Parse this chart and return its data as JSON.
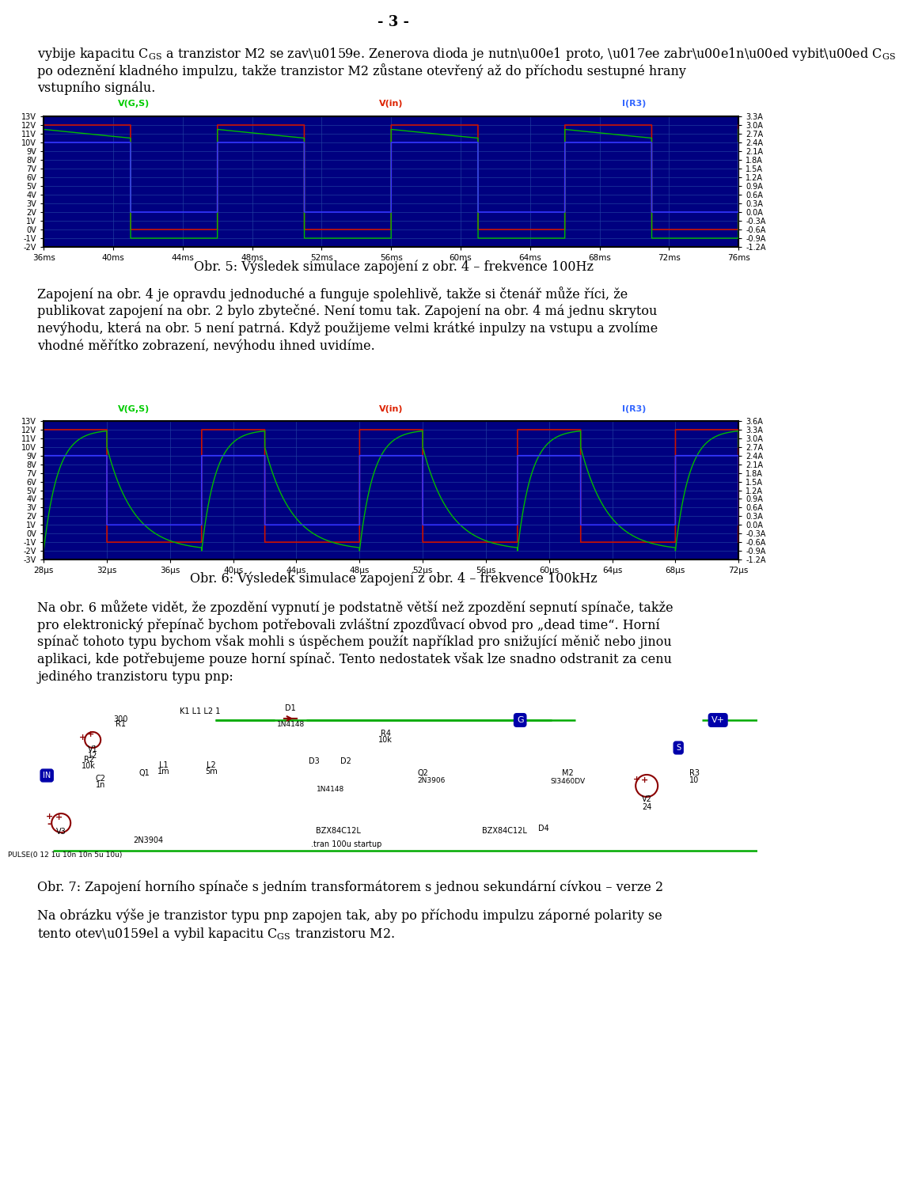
{
  "page_number": "- 3 -",
  "plot1_caption": "Obr. 5: Výsledek simulace zapojení z obr. 4 – frekvence 100Hz",
  "plot2_caption": "Obr. 6: Výsledek simulace zapojení z obr. 4 – frekvence 100kHz",
  "circuit_caption": "Obr. 7: Zapojení horního spínače s jedním transformátorem s jednou sekundární cívkou – verze 2",
  "intro_lines": [
    "vybije kapacitu CGS a tranzistor M2 se zavře. Zenerova dioda je nutná proto, že zabrání vybití CGS",
    "po odeznění kladného impulzu, takže tranzistor M2 zůstane otevřený až do příchodu sestupné hrany",
    "vstupního signálu."
  ],
  "mid_lines": [
    "Zapojení na obr. 4 je opravdu jednoduché a funguje spolehlivě, takže si čtenář může říci, že",
    "publikovat zapojení na obr. 2 bylo zbytečné. Není tomu tak. Zapojení na obr. 4 má jednu skrytou",
    "nevýhodu, která na obr. 5 není patrná. Když použijeme velmi krátké inpulzy na vstupu a zvolíme",
    "vhodné měřítko zobrazení, nevýhodu ihned uvidíme."
  ],
  "bottom_lines": [
    "Na obr. 6 můžete vidět, že zpozdění vypnutí je podstatně větší než zpozdění sepnutí spínače, takže",
    "pro elektronický přepínač bychom potřebovali zvláštní zpozďůvací obvod pro „dead time“. Horní",
    "spínač tohoto typu bychom však mohli s úspěchem použít například pro snižující měnič nebo jinou",
    "aplikaci, kde potřebujeme pouze horní spínač. Tento nedostatek však lze snadno odstranit za cenu",
    "jediného tranzistoru typu pnp:"
  ],
  "final_lines": [
    "Na obrázku výše je tranzistor typu pnp zapojen tak, aby po příchodu impulzu záporné polarity se",
    "tento otevřel a vybil kapacitu CGS tranzistoru M2."
  ],
  "plot_bg": "#000080",
  "grid_color": "#2040a0",
  "sig_green": "#00bb00",
  "sig_red": "#cc1100",
  "sig_blue": "#3333ff",
  "leg_green": "#00cc00",
  "leg_red": "#dd2200",
  "leg_blue": "#3366ff"
}
